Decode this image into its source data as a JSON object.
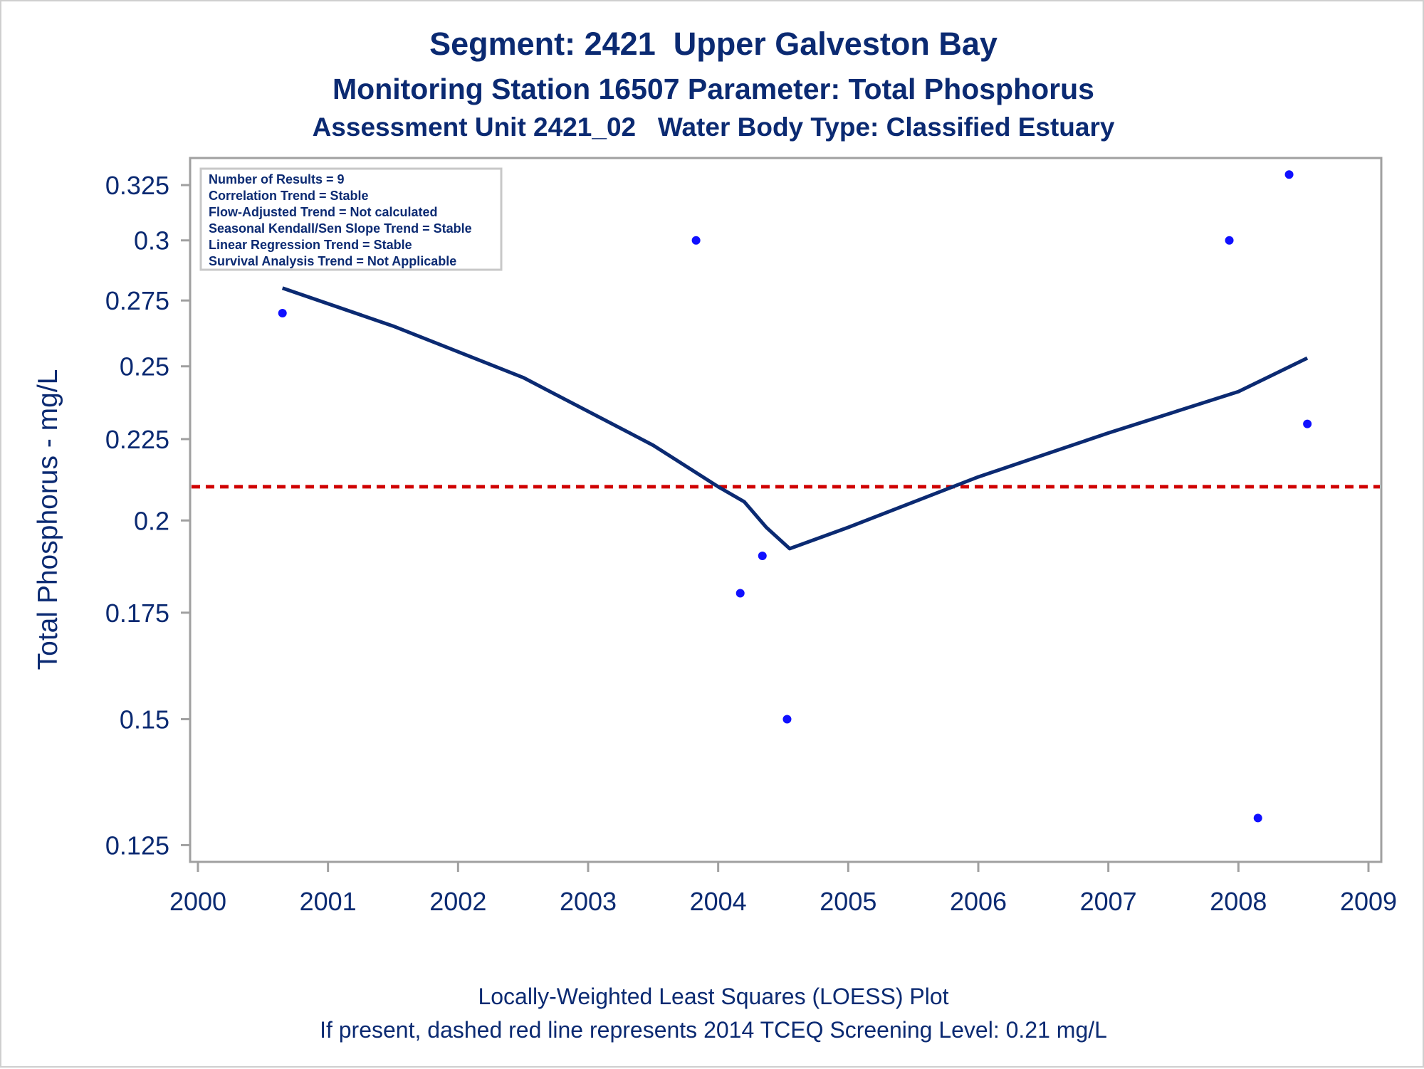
{
  "titles": {
    "line1": "Segment: 2421  Upper Galveston Bay",
    "line2": "Monitoring Station 16507 Parameter: Total Phosphorus",
    "line3": "Assessment Unit 2421_02   Water Body Type: Classified Estuary"
  },
  "footnotes": {
    "line1": "Locally-Weighted Least Squares (LOESS) Plot",
    "line2": "If present, dashed red line represents 2014 TCEQ Screening Level: 0.21 mg/L"
  },
  "stats_box": [
    "Number of Results = 9",
    "Correlation Trend = Stable",
    "Flow-Adjusted Trend = Not calculated",
    "Seasonal Kendall/Sen Slope Trend = Stable",
    "Linear Regression Trend = Stable",
    "Survival Analysis Trend = Not Applicable"
  ],
  "colors": {
    "text": "#0b2a72",
    "points": "#1010ff",
    "loess": "#0b2a72",
    "screening": "#d00000",
    "frame": "#a0a0a0"
  },
  "chart_data": {
    "type": "scatter",
    "xlabel": "",
    "ylabel": "Total Phosphorus - mg/L",
    "y_scale": "log",
    "xlim": [
      2000,
      2009
    ],
    "ylim": [
      0.122,
      0.338
    ],
    "x_ticks": [
      2000,
      2001,
      2002,
      2003,
      2004,
      2005,
      2006,
      2007,
      2008,
      2009
    ],
    "x_tick_labels": [
      "2000",
      "2001",
      "2002",
      "2003",
      "2004",
      "2005",
      "2006",
      "2007",
      "2008",
      "2009"
    ],
    "y_ticks": [
      0.125,
      0.15,
      0.175,
      0.2,
      0.225,
      0.25,
      0.275,
      0.3,
      0.325
    ],
    "y_tick_labels": [
      "0.125",
      "0.15",
      "0.175",
      "0.2",
      "0.225",
      "0.25",
      "0.275",
      "0.3",
      "0.325"
    ],
    "points": [
      {
        "x": 2000.65,
        "y": 0.27
      },
      {
        "x": 2003.83,
        "y": 0.3
      },
      {
        "x": 2004.17,
        "y": 0.18
      },
      {
        "x": 2004.34,
        "y": 0.19
      },
      {
        "x": 2004.53,
        "y": 0.15
      },
      {
        "x": 2007.93,
        "y": 0.3
      },
      {
        "x": 2008.15,
        "y": 0.13
      },
      {
        "x": 2008.39,
        "y": 0.33
      },
      {
        "x": 2008.53,
        "y": 0.23
      }
    ],
    "loess": [
      {
        "x": 2000.65,
        "y": 0.28
      },
      {
        "x": 2001.5,
        "y": 0.265
      },
      {
        "x": 2002.5,
        "y": 0.246
      },
      {
        "x": 2003.5,
        "y": 0.223
      },
      {
        "x": 2004.0,
        "y": 0.21
      },
      {
        "x": 2004.2,
        "y": 0.2055
      },
      {
        "x": 2004.37,
        "y": 0.198
      },
      {
        "x": 2004.55,
        "y": 0.192
      },
      {
        "x": 2005.0,
        "y": 0.198
      },
      {
        "x": 2006.0,
        "y": 0.213
      },
      {
        "x": 2007.0,
        "y": 0.227
      },
      {
        "x": 2008.0,
        "y": 0.241
      },
      {
        "x": 2008.53,
        "y": 0.253
      }
    ],
    "screening_level": 0.21
  }
}
